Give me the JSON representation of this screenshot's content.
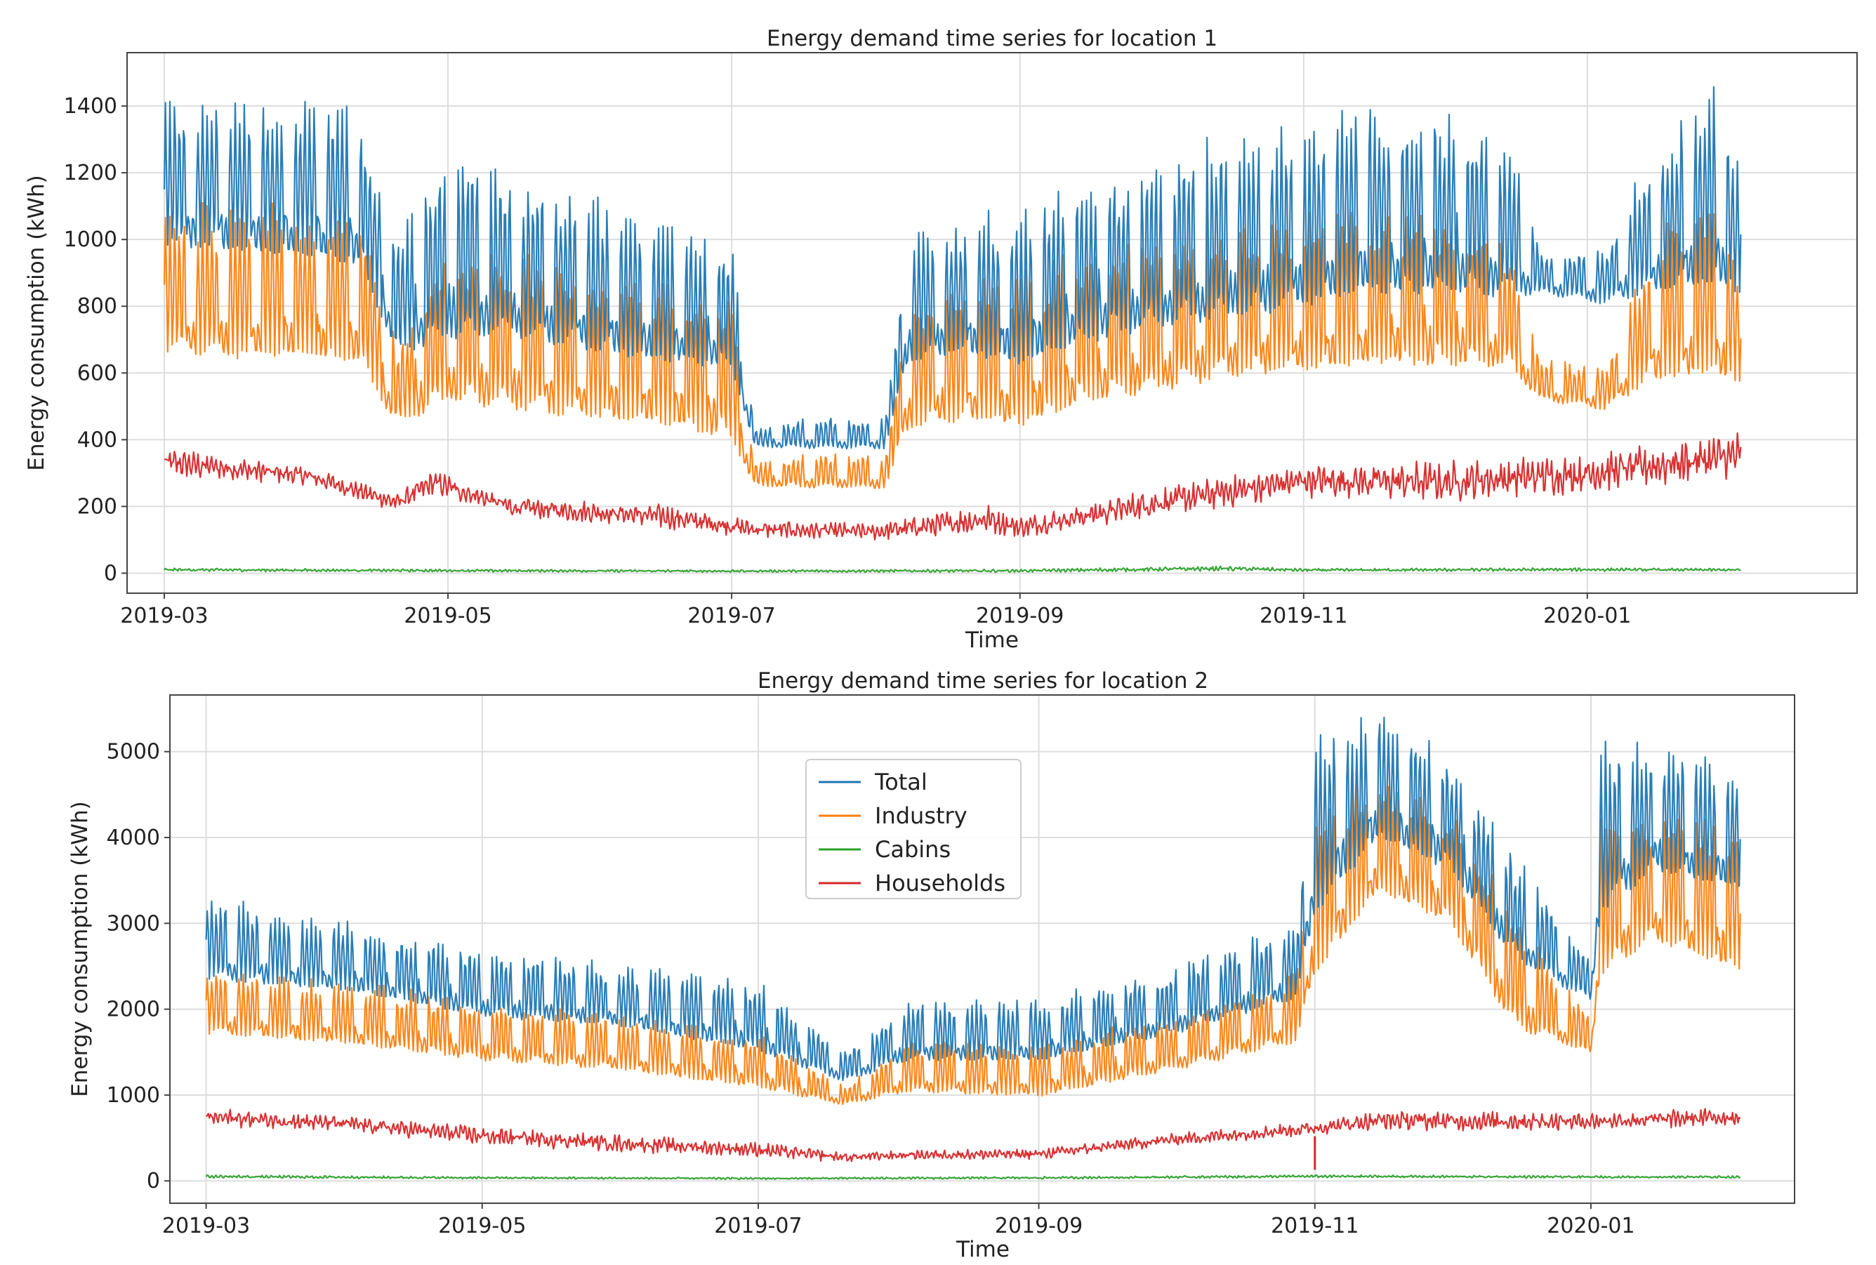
{
  "chart_data": [
    {
      "type": "line",
      "title": "Energy demand time series for location 1",
      "xlabel": "Time",
      "ylabel": "Energy consumption (kWh)",
      "xlim": [
        "2019-02-21",
        "2020-02-28"
      ],
      "ylim": [
        -60,
        1560
      ],
      "x_ticks": [
        "2019-03",
        "2019-05",
        "2019-07",
        "2019-09",
        "2019-11",
        "2020-01"
      ],
      "y_ticks": [
        0,
        200,
        400,
        600,
        800,
        1000,
        1200,
        1400
      ],
      "grid": true,
      "colors": {
        "Total": "#1f77b4",
        "Industry": "#ff7f0e",
        "Cabins": "#2ca02c",
        "Households": "#d62728"
      },
      "series": [
        {
          "name": "Total",
          "x": [
            "2019-03-01",
            "2019-03-15",
            "2019-04-01",
            "2019-04-12",
            "2019-04-20",
            "2019-05-01",
            "2019-05-15",
            "2019-06-01",
            "2019-06-15",
            "2019-07-01",
            "2019-07-06",
            "2019-07-20",
            "2019-08-03",
            "2019-08-08",
            "2019-08-20",
            "2019-09-01",
            "2019-09-15",
            "2019-10-01",
            "2019-10-15",
            "2019-11-01",
            "2019-11-15",
            "2019-12-01",
            "2019-12-15",
            "2019-12-22",
            "2020-01-05",
            "2020-01-15",
            "2020-01-28",
            "2020-02-03"
          ],
          "low": [
            920,
            900,
            880,
            860,
            600,
            620,
            640,
            600,
            580,
            560,
            370,
            360,
            360,
            580,
            600,
            560,
            620,
            660,
            680,
            720,
            760,
            760,
            760,
            820,
            780,
            780,
            780,
            780
          ],
          "high": [
            1400,
            1420,
            1420,
            1380,
            1000,
            1280,
            1180,
            1120,
            1040,
            980,
            430,
            470,
            460,
            1000,
            1060,
            1080,
            1180,
            1240,
            1300,
            1340,
            1400,
            1380,
            1300,
            960,
            980,
            1260,
            1480,
            1200
          ]
        },
        {
          "name": "Industry",
          "x": [
            "2019-03-01",
            "2019-03-15",
            "2019-04-01",
            "2019-04-12",
            "2019-04-20",
            "2019-05-01",
            "2019-05-15",
            "2019-06-01",
            "2019-06-15",
            "2019-07-01",
            "2019-07-06",
            "2019-07-20",
            "2019-08-03",
            "2019-08-08",
            "2019-08-20",
            "2019-09-01",
            "2019-09-15",
            "2019-10-01",
            "2019-10-15",
            "2019-11-01",
            "2019-11-15",
            "2019-12-01",
            "2019-12-15",
            "2019-12-22",
            "2020-01-05",
            "2020-01-15",
            "2020-01-28",
            "2020-02-03"
          ],
          "low": [
            600,
            580,
            580,
            560,
            400,
            440,
            420,
            400,
            390,
            340,
            250,
            240,
            240,
            380,
            400,
            380,
            440,
            480,
            520,
            540,
            560,
            560,
            560,
            500,
            470,
            520,
            520,
            520
          ],
          "high": [
            1080,
            1100,
            1100,
            1080,
            700,
            1000,
            960,
            900,
            860,
            820,
            330,
            360,
            350,
            800,
            860,
            880,
            960,
            1000,
            1040,
            1060,
            1080,
            1060,
            980,
            640,
            620,
            1000,
            1100,
            900
          ]
        },
        {
          "name": "Cabins",
          "x": [
            "2019-03-01",
            "2019-05-01",
            "2019-07-01",
            "2019-09-01",
            "2019-10-15",
            "2019-11-01",
            "2020-01-01",
            "2020-02-03"
          ],
          "low": [
            5,
            3,
            2,
            2,
            5,
            4,
            5,
            5
          ],
          "high": [
            15,
            12,
            10,
            12,
            22,
            14,
            16,
            14
          ]
        },
        {
          "name": "Households",
          "x": [
            "2019-03-01",
            "2019-04-01",
            "2019-04-20",
            "2019-04-28",
            "2019-05-15",
            "2019-06-15",
            "2019-07-06",
            "2019-08-01",
            "2019-08-25",
            "2019-09-01",
            "2019-10-01",
            "2019-11-01",
            "2019-12-01",
            "2020-01-01",
            "2020-02-03"
          ],
          "low": [
            280,
            260,
            180,
            230,
            160,
            130,
            100,
            95,
            110,
            100,
            160,
            220,
            200,
            230,
            270
          ],
          "high": [
            380,
            320,
            240,
            310,
            230,
            210,
            160,
            150,
            210,
            170,
            260,
            330,
            340,
            360,
            430
          ]
        }
      ]
    },
    {
      "type": "line",
      "title": "Energy demand time series for location 2",
      "xlabel": "Time",
      "ylabel": "Energy consumption (kWh)",
      "xlim": [
        "2019-02-21",
        "2020-02-15"
      ],
      "ylim": [
        -260,
        5660
      ],
      "x_ticks": [
        "2019-03",
        "2019-05",
        "2019-07",
        "2019-09",
        "2019-11",
        "2020-01"
      ],
      "y_ticks": [
        0,
        1000,
        2000,
        3000,
        4000,
        5000
      ],
      "grid": true,
      "legend": {
        "position": "upper-center",
        "entries": [
          "Total",
          "Industry",
          "Cabins",
          "Households"
        ]
      },
      "colors": {
        "Total": "#1f77b4",
        "Industry": "#ff7f0e",
        "Cabins": "#2ca02c",
        "Households": "#d62728"
      },
      "series": [
        {
          "name": "Total",
          "x": [
            "2019-03-01",
            "2019-04-01",
            "2019-05-01",
            "2019-06-01",
            "2019-07-01",
            "2019-07-20",
            "2019-08-03",
            "2019-09-01",
            "2019-10-01",
            "2019-10-28",
            "2019-11-01",
            "2019-11-15",
            "2019-12-01",
            "2019-12-15",
            "2020-01-01",
            "2020-01-03",
            "2020-01-15",
            "2020-02-03"
          ],
          "low": [
            2200,
            2100,
            1800,
            1700,
            1400,
            1100,
            1300,
            1300,
            1600,
            2000,
            2800,
            3800,
            3400,
            2400,
            2000,
            2800,
            3400,
            3200
          ],
          "high": [
            3300,
            3000,
            2700,
            2500,
            2300,
            1500,
            2100,
            2100,
            2500,
            3000,
            5200,
            5400,
            5000,
            3800,
            2600,
            5100,
            5100,
            4800
          ]
        },
        {
          "name": "Industry",
          "x": [
            "2019-03-01",
            "2019-04-01",
            "2019-05-01",
            "2019-06-01",
            "2019-07-01",
            "2019-07-20",
            "2019-08-03",
            "2019-09-01",
            "2019-10-01",
            "2019-10-28",
            "2019-11-01",
            "2019-11-15",
            "2019-12-01",
            "2019-12-15",
            "2020-01-01",
            "2020-01-03",
            "2020-01-15",
            "2020-02-03"
          ],
          "low": [
            1600,
            1500,
            1300,
            1200,
            1000,
            850,
            950,
            900,
            1200,
            1500,
            2100,
            3200,
            2800,
            1600,
            1400,
            2100,
            2600,
            2200
          ],
          "high": [
            2500,
            2300,
            2100,
            1900,
            1700,
            1100,
            1600,
            1600,
            1900,
            2400,
            4400,
            4600,
            4300,
            3100,
            1900,
            4200,
            4200,
            4100
          ]
        },
        {
          "name": "Cabins",
          "x": [
            "2019-03-01",
            "2019-05-01",
            "2019-07-01",
            "2019-09-01",
            "2019-11-01",
            "2020-01-01",
            "2020-02-03"
          ],
          "low": [
            30,
            20,
            15,
            20,
            35,
            30,
            30
          ],
          "high": [
            70,
            50,
            40,
            50,
            70,
            60,
            60
          ]
        },
        {
          "name": "Households",
          "x": [
            "2019-03-01",
            "2019-04-01",
            "2019-05-01",
            "2019-06-01",
            "2019-07-01",
            "2019-07-20",
            "2019-08-03",
            "2019-09-01",
            "2019-10-01",
            "2019-11-01",
            "2019-11-15",
            "2019-12-01",
            "2020-01-01",
            "2020-02-03"
          ],
          "low": [
            620,
            560,
            400,
            320,
            260,
            200,
            240,
            240,
            400,
            520,
            580,
            560,
            580,
            620
          ],
          "high": [
            860,
            760,
            640,
            540,
            460,
            340,
            360,
            380,
            560,
            700,
            820,
            820,
            800,
            860
          ],
          "spikes": [
            {
              "x": "2019-11-01",
              "y": 130
            }
          ]
        }
      ]
    }
  ]
}
